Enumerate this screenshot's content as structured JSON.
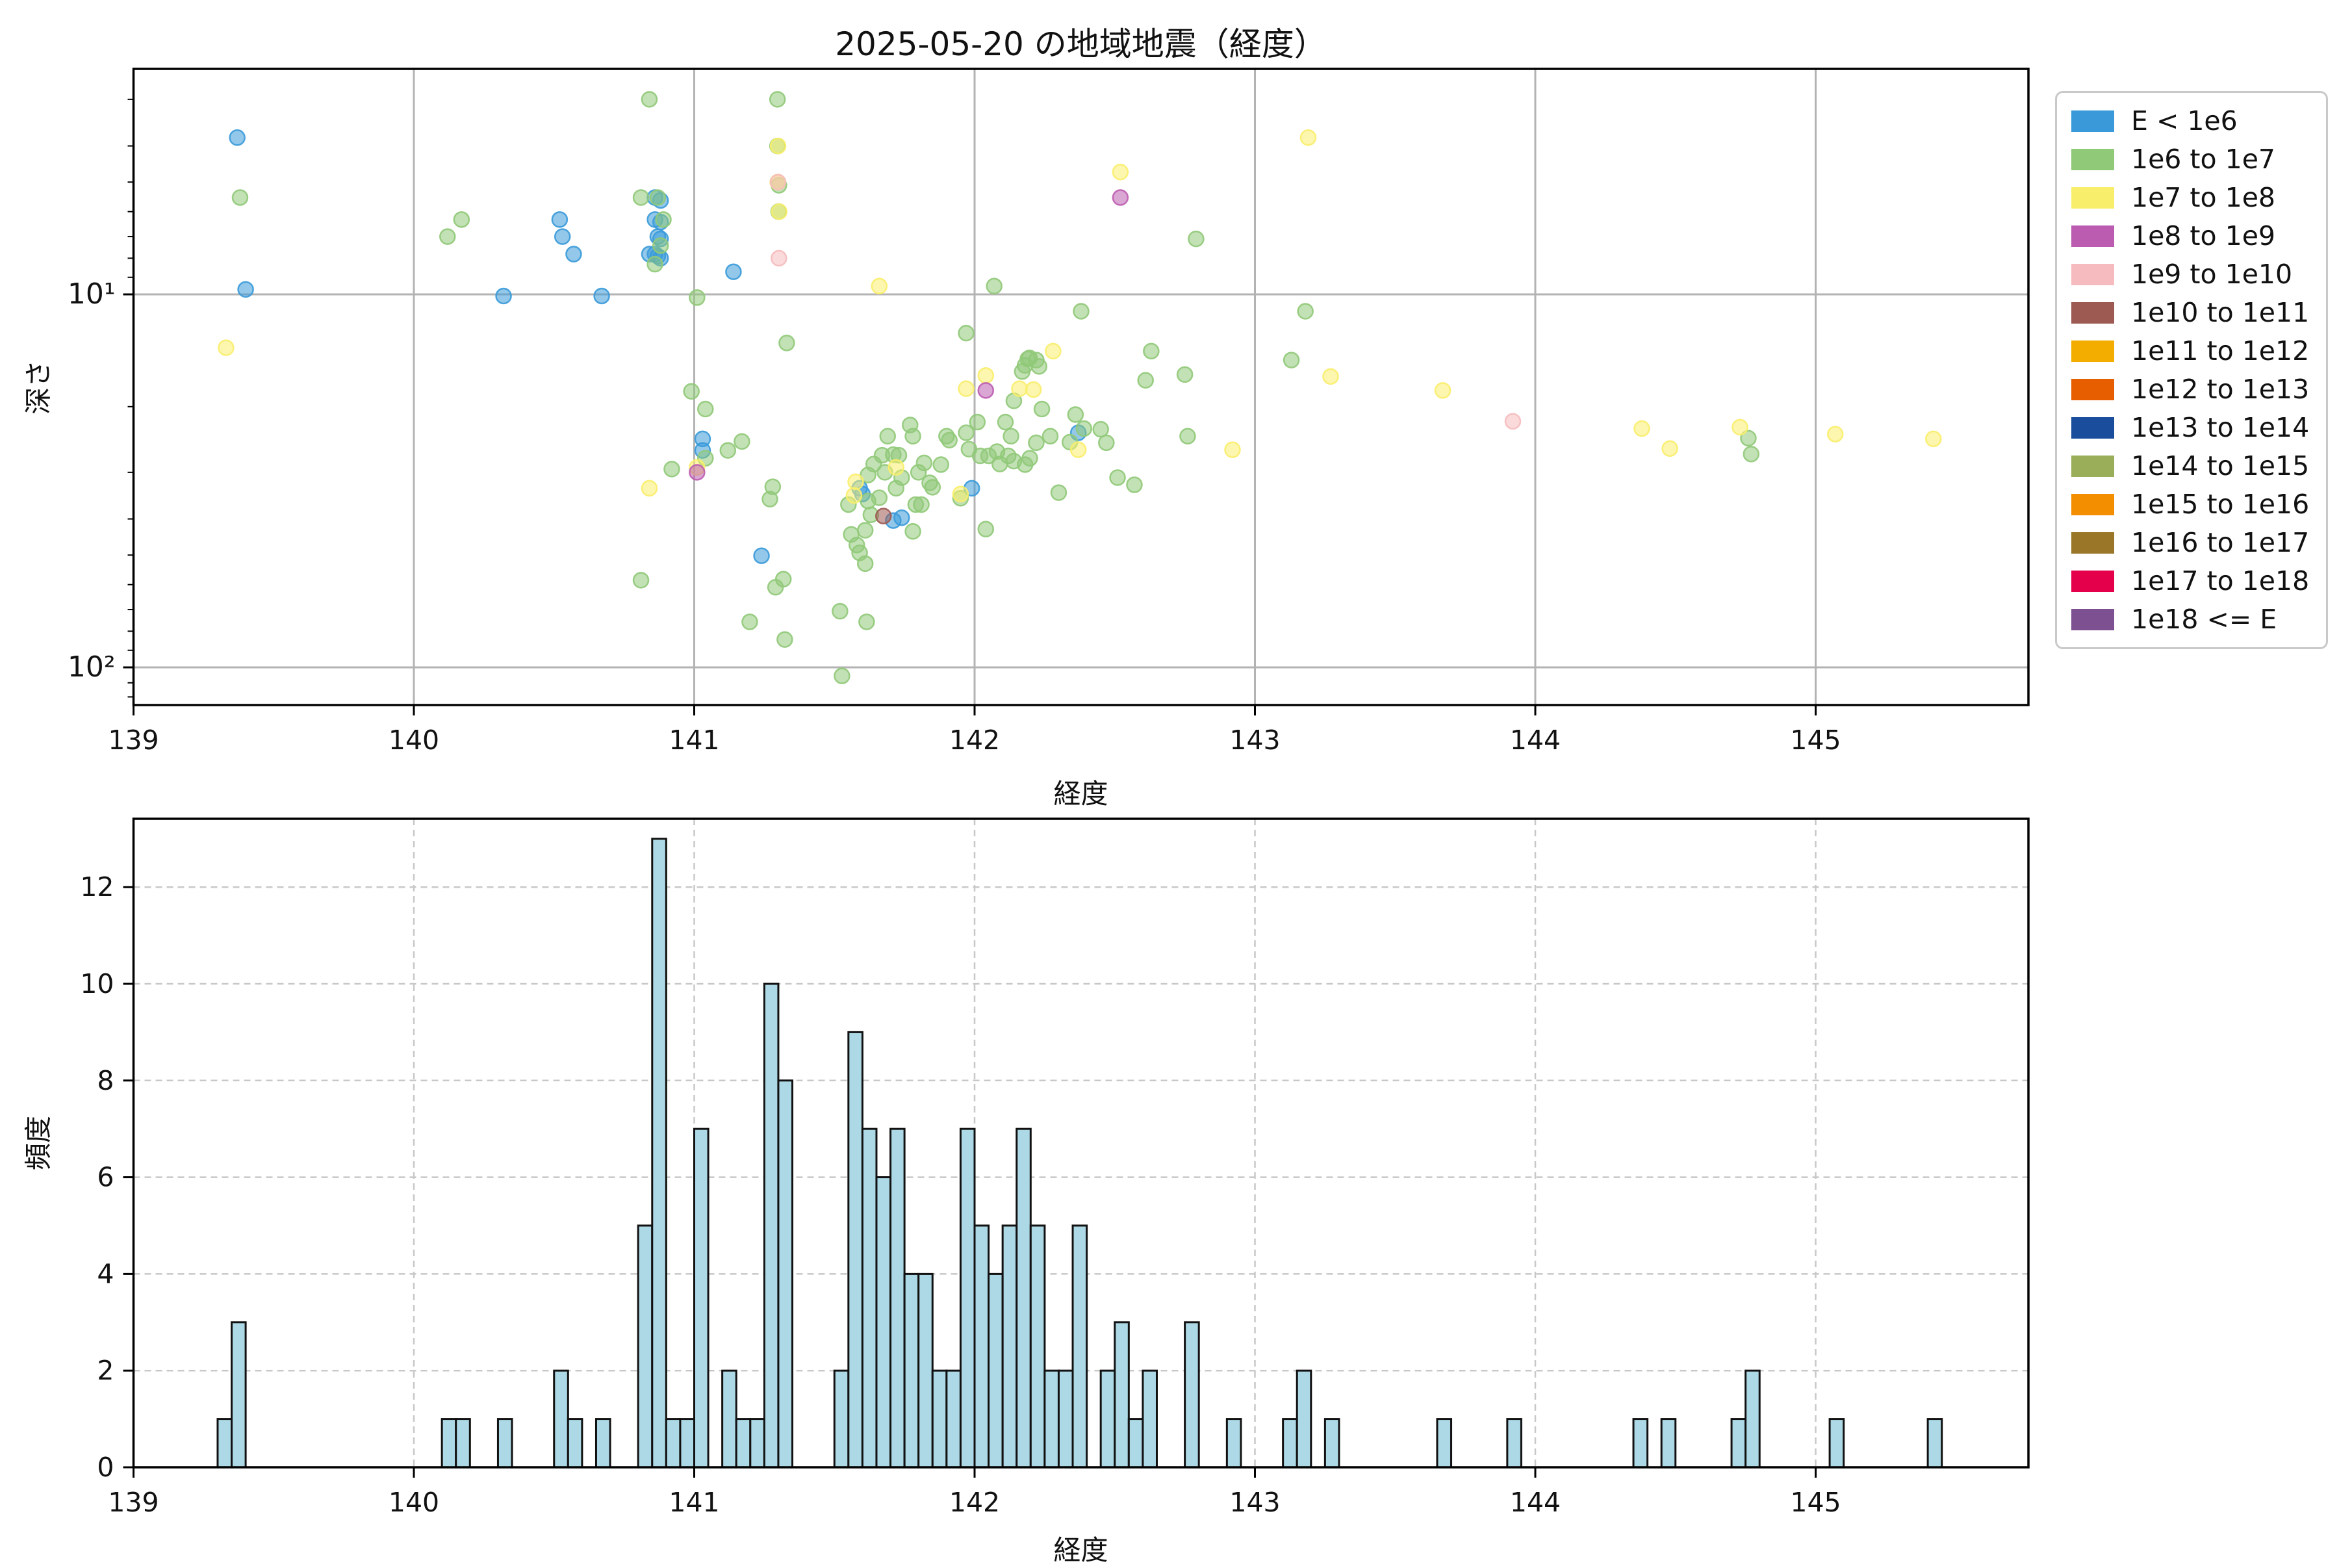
{
  "title": "2025-05-20 の地域地震（経度）",
  "colors": {
    "background": "#ffffff",
    "grid_top": "#b3b3b3",
    "grid_bottom": "#c8c8c8",
    "spine": "#000000",
    "hist_fill": "#add8e6",
    "hist_edge": "#111111",
    "legend_border": "#c9c9c9"
  },
  "top_chart": {
    "xlabel": "経度",
    "ylabel": "深さ",
    "x_ticks": [
      139,
      140,
      141,
      142,
      143,
      144,
      145
    ],
    "y_ticks": [
      {
        "value": 10,
        "label": "10¹"
      },
      {
        "value": 100,
        "label": "10²"
      }
    ],
    "y_minor_ticks": [
      3,
      4,
      5,
      6,
      7,
      8,
      9,
      20,
      30,
      40,
      50,
      60,
      70,
      80,
      90,
      110,
      120
    ],
    "xlim": [
      139,
      145.76
    ],
    "depth_lim": [
      2.49,
      126
    ],
    "y_scale": "log",
    "y_inverted": true
  },
  "bottom_chart": {
    "xlabel": "経度",
    "ylabel": "頻度",
    "x_ticks": [
      139,
      140,
      141,
      142,
      143,
      144,
      145
    ],
    "y_ticks": [
      0,
      2,
      4,
      6,
      8,
      10,
      12
    ],
    "xlim": [
      139,
      145.76
    ],
    "ylim": [
      0,
      13.41
    ]
  },
  "legend": {
    "items": [
      {
        "label": "E < 1e6",
        "color": "#3a9ad9"
      },
      {
        "label": "1e6 to 1e7",
        "color": "#90c978"
      },
      {
        "label": "1e7 to 1e8",
        "color": "#f9ee6b"
      },
      {
        "label": "1e8 to 1e9",
        "color": "#bc5cb0"
      },
      {
        "label": "1e9 to 1e10",
        "color": "#f5bbbe"
      },
      {
        "label": "1e10 to 1e11",
        "color": "#9c5a52"
      },
      {
        "label": "1e11 to 1e12",
        "color": "#f2ad00"
      },
      {
        "label": "1e12 to 1e13",
        "color": "#e65e00"
      },
      {
        "label": "1e13 to 1e14",
        "color": "#1a4e9c"
      },
      {
        "label": "1e14 to 1e15",
        "color": "#9aae5a"
      },
      {
        "label": "1e15 to 1e16",
        "color": "#f28e00"
      },
      {
        "label": "1e16 to 1e17",
        "color": "#9a7728"
      },
      {
        "label": "1e17 to 1e18",
        "color": "#e5004c"
      },
      {
        "label": "1e18 <= E",
        "color": "#7d5191"
      }
    ]
  },
  "chart_data": [
    {
      "type": "scatter",
      "title": "2025-05-20 の地域地震（経度）",
      "xlabel": "経度",
      "ylabel": "深さ",
      "x_axis": "longitude",
      "y_axis": "depth_km",
      "y_scale": "log",
      "y_inverted": true,
      "xlim": [
        139,
        145.76
      ],
      "ylim": [
        2.49,
        126
      ],
      "series": [
        {
          "name": "E < 1e6",
          "color": "#3a9ad9",
          "points": [
            [
              139.37,
              3.8
            ],
            [
              139.4,
              9.7
            ],
            [
              140.32,
              10.1
            ],
            [
              140.52,
              6.3
            ],
            [
              140.53,
              7.0
            ],
            [
              140.57,
              7.8
            ],
            [
              140.67,
              10.1
            ],
            [
              140.84,
              7.8
            ],
            [
              140.86,
              5.5
            ],
            [
              140.88,
              5.6
            ],
            [
              140.86,
              6.3
            ],
            [
              140.88,
              6.4
            ],
            [
              140.87,
              7.0
            ],
            [
              140.88,
              7.1
            ],
            [
              140.86,
              7.8
            ],
            [
              140.87,
              7.9
            ],
            [
              140.88,
              8.0
            ],
            [
              141.03,
              24.4
            ],
            [
              141.03,
              26.2
            ],
            [
              141.14,
              8.7
            ],
            [
              141.24,
              50.2
            ],
            [
              141.59,
              33.1
            ],
            [
              141.6,
              34.3
            ],
            [
              141.71,
              40.4
            ],
            [
              141.74,
              39.7
            ],
            [
              141.99,
              33.1
            ],
            [
              142.37,
              23.5
            ]
          ]
        },
        {
          "name": "1e6 to 1e7",
          "color": "#90c978",
          "points": [
            [
              139.38,
              5.5
            ],
            [
              140.12,
              7.0
            ],
            [
              140.17,
              6.3
            ],
            [
              140.84,
              3.0
            ],
            [
              140.81,
              5.5
            ],
            [
              140.81,
              58.4
            ],
            [
              140.87,
              5.5
            ],
            [
              140.89,
              6.3
            ],
            [
              140.88,
              7.4
            ],
            [
              140.86,
              8.3
            ],
            [
              140.92,
              29.4
            ],
            [
              140.99,
              18.2
            ],
            [
              141.01,
              10.2
            ],
            [
              141.04,
              27.5
            ],
            [
              141.04,
              20.3
            ],
            [
              141.12,
              26.2
            ],
            [
              141.17,
              24.8
            ],
            [
              141.198,
              75.5
            ],
            [
              141.27,
              35.4
            ],
            [
              141.28,
              32.8
            ],
            [
              141.297,
              3.0
            ],
            [
              141.297,
              4.0
            ],
            [
              141.302,
              5.1
            ],
            [
              141.301,
              6.0
            ],
            [
              141.318,
              58.0
            ],
            [
              141.323,
              84.2
            ],
            [
              141.33,
              13.5
            ],
            [
              141.29,
              61.0
            ],
            [
              141.52,
              70.7
            ],
            [
              141.527,
              105.4
            ],
            [
              141.55,
              36.6
            ],
            [
              141.59,
              49.3
            ],
            [
              141.56,
              44.0
            ],
            [
              141.58,
              47.0
            ],
            [
              141.61,
              52.7
            ],
            [
              141.615,
              75.5
            ],
            [
              141.61,
              42.9
            ],
            [
              141.63,
              39.0
            ],
            [
              141.62,
              35.8
            ],
            [
              141.64,
              28.5
            ],
            [
              141.62,
              30.5
            ],
            [
              141.66,
              35.1
            ],
            [
              141.68,
              30.0
            ],
            [
              141.69,
              24.0
            ],
            [
              141.67,
              27.0
            ],
            [
              141.72,
              33.1
            ],
            [
              141.71,
              26.9
            ],
            [
              141.73,
              27.0
            ],
            [
              141.74,
              31.0
            ],
            [
              141.77,
              22.4
            ],
            [
              141.78,
              24.0
            ],
            [
              141.78,
              43.2
            ],
            [
              141.79,
              36.6
            ],
            [
              141.81,
              36.6
            ],
            [
              141.8,
              30.0
            ],
            [
              141.82,
              28.3
            ],
            [
              141.84,
              32.0
            ],
            [
              141.85,
              32.9
            ],
            [
              141.88,
              28.6
            ],
            [
              141.9,
              24.0
            ],
            [
              141.91,
              24.6
            ],
            [
              141.97,
              23.5
            ],
            [
              141.97,
              12.7
            ],
            [
              141.95,
              35.2
            ],
            [
              141.98,
              26.0
            ],
            [
              142.02,
              27.1
            ],
            [
              142.04,
              42.6
            ],
            [
              142.01,
              22.0
            ],
            [
              142.07,
              9.5
            ],
            [
              142.05,
              27.1
            ],
            [
              142.08,
              26.4
            ],
            [
              142.09,
              28.5
            ],
            [
              142.12,
              27.1
            ],
            [
              142.14,
              19.3
            ],
            [
              142.13,
              24.0
            ],
            [
              142.11,
              22.0
            ],
            [
              142.14,
              28.0
            ],
            [
              142.18,
              15.5
            ],
            [
              142.17,
              16.1
            ],
            [
              142.19,
              14.9
            ],
            [
              142.196,
              14.8
            ],
            [
              142.197,
              27.5
            ],
            [
              142.18,
              28.6
            ],
            [
              142.22,
              15.0
            ],
            [
              142.23,
              15.6
            ],
            [
              142.24,
              20.3
            ],
            [
              142.22,
              25.0
            ],
            [
              142.27,
              24.0
            ],
            [
              142.3,
              34.0
            ],
            [
              142.34,
              24.9
            ],
            [
              142.39,
              22.9
            ],
            [
              142.38,
              11.1
            ],
            [
              142.36,
              21.0
            ],
            [
              142.45,
              23.0
            ],
            [
              142.47,
              25.0
            ],
            [
              142.51,
              31.0
            ],
            [
              142.57,
              32.4
            ],
            [
              142.63,
              14.2
            ],
            [
              142.61,
              17.0
            ],
            [
              142.75,
              16.4
            ],
            [
              142.76,
              24.0
            ],
            [
              142.79,
              7.1
            ],
            [
              143.13,
              15.0
            ],
            [
              143.18,
              11.1
            ],
            [
              144.76,
              24.3
            ],
            [
              144.77,
              26.8
            ]
          ]
        },
        {
          "name": "1e7 to 1e8",
          "color": "#f9ee6b",
          "points": [
            [
              139.33,
              13.9
            ],
            [
              140.84,
              33.1
            ],
            [
              141.01,
              29.1
            ],
            [
              141.299,
              4.0
            ],
            [
              141.298,
              5.0
            ],
            [
              141.303,
              6.0
            ],
            [
              141.57,
              34.6
            ],
            [
              141.576,
              31.8
            ],
            [
              141.66,
              9.5
            ],
            [
              141.72,
              29.1
            ],
            [
              141.95,
              34.3
            ],
            [
              141.97,
              17.9
            ],
            [
              142.04,
              16.5
            ],
            [
              142.16,
              17.9
            ],
            [
              142.21,
              18.0
            ],
            [
              142.28,
              14.2
            ],
            [
              142.37,
              26.1
            ],
            [
              142.52,
              4.7
            ],
            [
              142.92,
              26.1
            ],
            [
              143.19,
              3.8
            ],
            [
              143.27,
              16.6
            ],
            [
              143.67,
              18.1
            ],
            [
              144.38,
              22.9
            ],
            [
              144.48,
              25.9
            ],
            [
              144.73,
              22.7
            ],
            [
              145.07,
              23.7
            ],
            [
              145.42,
              24.4
            ]
          ]
        },
        {
          "name": "1e8 to 1e9",
          "color": "#bc5cb0",
          "points": [
            [
              141.01,
              30.0
            ],
            [
              142.04,
              18.1
            ],
            [
              142.52,
              5.5
            ]
          ]
        },
        {
          "name": "1e9 to 1e10",
          "color": "#f5bbbe",
          "points": [
            [
              141.299,
              5.0
            ],
            [
              141.302,
              8.0
            ],
            [
              143.92,
              21.9
            ]
          ]
        },
        {
          "name": "1e10 to 1e11",
          "color": "#9c5a52",
          "points": [
            [
              141.675,
              39.3
            ]
          ]
        }
      ]
    },
    {
      "type": "histogram",
      "xlabel": "経度",
      "ylabel": "頻度",
      "bin_width": 0.05,
      "xlim": [
        139,
        145.76
      ],
      "ylim": [
        0,
        13.41
      ],
      "bins": [
        [
          139.3,
          1
        ],
        [
          139.35,
          3
        ],
        [
          140.1,
          1
        ],
        [
          140.15,
          1
        ],
        [
          140.3,
          1
        ],
        [
          140.5,
          2
        ],
        [
          140.55,
          1
        ],
        [
          140.65,
          1
        ],
        [
          140.8,
          5
        ],
        [
          140.85,
          13
        ],
        [
          140.9,
          1
        ],
        [
          140.95,
          1
        ],
        [
          141.0,
          7
        ],
        [
          141.1,
          2
        ],
        [
          141.15,
          1
        ],
        [
          141.2,
          1
        ],
        [
          141.25,
          10
        ],
        [
          141.3,
          8
        ],
        [
          141.5,
          2
        ],
        [
          141.55,
          9
        ],
        [
          141.6,
          7
        ],
        [
          141.65,
          6
        ],
        [
          141.7,
          7
        ],
        [
          141.75,
          4
        ],
        [
          141.8,
          4
        ],
        [
          141.85,
          2
        ],
        [
          141.9,
          2
        ],
        [
          141.95,
          7
        ],
        [
          142.0,
          5
        ],
        [
          142.05,
          4
        ],
        [
          142.1,
          5
        ],
        [
          142.15,
          7
        ],
        [
          142.2,
          5
        ],
        [
          142.25,
          2
        ],
        [
          142.3,
          2
        ],
        [
          142.35,
          5
        ],
        [
          142.45,
          2
        ],
        [
          142.5,
          3
        ],
        [
          142.55,
          1
        ],
        [
          142.6,
          2
        ],
        [
          142.75,
          3
        ],
        [
          142.9,
          1
        ],
        [
          143.1,
          1
        ],
        [
          143.15,
          2
        ],
        [
          143.25,
          1
        ],
        [
          143.65,
          1
        ],
        [
          143.9,
          1
        ],
        [
          144.35,
          1
        ],
        [
          144.45,
          1
        ],
        [
          144.7,
          1
        ],
        [
          144.75,
          2
        ],
        [
          145.05,
          1
        ],
        [
          145.4,
          1
        ]
      ]
    }
  ]
}
